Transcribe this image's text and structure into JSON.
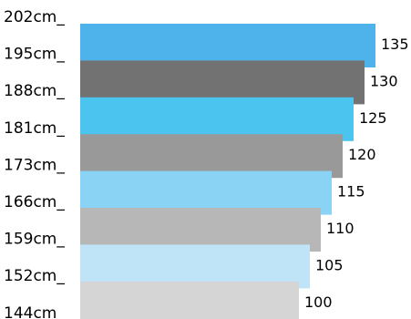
{
  "chart_data": {
    "type": "bar",
    "orientation": "horizontal",
    "categories": [
      "202cm_",
      "195cm_",
      "188cm_",
      "181cm_",
      "173cm_",
      "166cm_",
      "159cm_",
      "152cm_",
      "144cm_"
    ],
    "bars": [
      {
        "value": 135,
        "label": "135",
        "color": "#4db3ea"
      },
      {
        "value": 130,
        "label": "130",
        "color": "#727272"
      },
      {
        "value": 125,
        "label": "125",
        "color": "#4bc4ef"
      },
      {
        "value": 120,
        "label": "120",
        "color": "#999999"
      },
      {
        "value": 115,
        "label": "115",
        "color": "#8bd3f5"
      },
      {
        "value": 110,
        "label": "110",
        "color": "#b7b7b7"
      },
      {
        "value": 105,
        "label": "105",
        "color": "#bfe4f8"
      },
      {
        "value": 100,
        "label": "100",
        "color": "#d5d5d5"
      }
    ],
    "xlim": [
      0,
      135
    ],
    "grid": false,
    "legend": "none"
  }
}
